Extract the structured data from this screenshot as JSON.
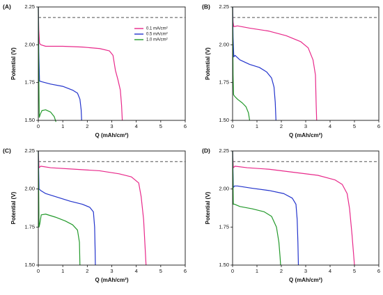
{
  "figure": {
    "colors": {
      "c01": "#e8288a",
      "c05": "#2233cc",
      "c10": "#22992a",
      "dash": "#666666"
    }
  },
  "chart_data": [
    {
      "panel": "(A)",
      "type": "line",
      "xlabel": "Q (mAh/cm²)",
      "ylabel": "Potential (V)",
      "xlim": [
        0,
        6
      ],
      "ylim": [
        1.5,
        2.25
      ],
      "xticks": [
        "0",
        "1",
        "2",
        "3",
        "4",
        "5",
        "6"
      ],
      "yticks": [
        "1.50",
        "1.75",
        "2.00",
        "2.25"
      ],
      "reference_line": {
        "y": 2.18,
        "style": "dashed"
      },
      "legend": {
        "position": "top-right",
        "entries": [
          "0.1 mA/cm²",
          "0.5 mA/cm²",
          "1.0 mA/cm²"
        ]
      },
      "series": [
        {
          "name": "0.1 mA/cm²",
          "color": "#e8288a",
          "points": [
            [
              0,
              2.25
            ],
            [
              0.02,
              2.1
            ],
            [
              0.05,
              2.01
            ],
            [
              0.1,
              2.0
            ],
            [
              0.3,
              1.99
            ],
            [
              1,
              1.99
            ],
            [
              1.8,
              1.985
            ],
            [
              2.5,
              1.975
            ],
            [
              2.9,
              1.96
            ],
            [
              3.05,
              1.93
            ],
            [
              3.1,
              1.88
            ],
            [
              3.15,
              1.83
            ],
            [
              3.25,
              1.77
            ],
            [
              3.35,
              1.7
            ],
            [
              3.4,
              1.6
            ],
            [
              3.43,
              1.5
            ]
          ]
        },
        {
          "name": "0.5 mA/cm²",
          "color": "#2233cc",
          "points": [
            [
              0,
              2.25
            ],
            [
              0.02,
              1.95
            ],
            [
              0.05,
              1.76
            ],
            [
              0.15,
              1.755
            ],
            [
              0.5,
              1.74
            ],
            [
              1,
              1.725
            ],
            [
              1.4,
              1.7
            ],
            [
              1.6,
              1.68
            ],
            [
              1.7,
              1.64
            ],
            [
              1.75,
              1.57
            ],
            [
              1.77,
              1.5
            ]
          ]
        },
        {
          "name": "1.0 mA/cm²",
          "color": "#22992a",
          "points": [
            [
              0,
              2.25
            ],
            [
              0.02,
              1.8
            ],
            [
              0.04,
              1.52
            ],
            [
              0.08,
              1.54
            ],
            [
              0.15,
              1.565
            ],
            [
              0.3,
              1.57
            ],
            [
              0.5,
              1.555
            ],
            [
              0.65,
              1.525
            ],
            [
              0.72,
              1.49
            ]
          ]
        }
      ]
    },
    {
      "panel": "(B)",
      "type": "line",
      "xlabel": "Q (mAh/cm²)",
      "ylabel": "Potential (V)",
      "xlim": [
        0,
        6
      ],
      "ylim": [
        1.5,
        2.25
      ],
      "xticks": [
        "0",
        "1",
        "2",
        "3",
        "4",
        "5",
        "6"
      ],
      "yticks": [
        "1.50",
        "1.75",
        "2.00",
        "2.25"
      ],
      "reference_line": {
        "y": 2.18,
        "style": "dashed"
      },
      "series": [
        {
          "name": "0.1 mA/cm²",
          "color": "#e8288a",
          "points": [
            [
              0,
              2.25
            ],
            [
              0.02,
              2.15
            ],
            [
              0.05,
              2.12
            ],
            [
              0.2,
              2.125
            ],
            [
              0.7,
              2.11
            ],
            [
              1.5,
              2.09
            ],
            [
              2.2,
              2.06
            ],
            [
              2.8,
              2.02
            ],
            [
              3.1,
              1.98
            ],
            [
              3.3,
              1.9
            ],
            [
              3.4,
              1.8
            ],
            [
              3.43,
              1.6
            ],
            [
              3.45,
              1.5
            ]
          ]
        },
        {
          "name": "0.5 mA/cm²",
          "color": "#2233cc",
          "points": [
            [
              0,
              2.25
            ],
            [
              0.02,
              2.05
            ],
            [
              0.05,
              1.92
            ],
            [
              0.1,
              1.93
            ],
            [
              0.3,
              1.9
            ],
            [
              0.7,
              1.87
            ],
            [
              1.1,
              1.85
            ],
            [
              1.4,
              1.82
            ],
            [
              1.6,
              1.78
            ],
            [
              1.7,
              1.72
            ],
            [
              1.75,
              1.62
            ],
            [
              1.78,
              1.5
            ]
          ]
        },
        {
          "name": "1.0 mA/cm²",
          "color": "#22992a",
          "points": [
            [
              0,
              2.25
            ],
            [
              0.02,
              1.8
            ],
            [
              0.04,
              1.67
            ],
            [
              0.08,
              1.66
            ],
            [
              0.2,
              1.64
            ],
            [
              0.4,
              1.615
            ],
            [
              0.55,
              1.59
            ],
            [
              0.65,
              1.55
            ],
            [
              0.7,
              1.5
            ]
          ]
        }
      ]
    },
    {
      "panel": "(C)",
      "type": "line",
      "xlabel": "Q (mAh/cm²)",
      "ylabel": "Potential (V)",
      "xlim": [
        0,
        6
      ],
      "ylim": [
        1.5,
        2.25
      ],
      "xticks": [
        "0",
        "1",
        "2",
        "3",
        "4",
        "5",
        "6"
      ],
      "yticks": [
        "1.50",
        "1.75",
        "2.00",
        "2.25"
      ],
      "reference_line": {
        "y": 2.18,
        "style": "dashed"
      },
      "series": [
        {
          "name": "0.1 mA/cm²",
          "color": "#e8288a",
          "points": [
            [
              0,
              2.25
            ],
            [
              0.03,
              2.14
            ],
            [
              0.1,
              2.15
            ],
            [
              0.5,
              2.14
            ],
            [
              1.5,
              2.13
            ],
            [
              2.5,
              2.12
            ],
            [
              3.3,
              2.1
            ],
            [
              3.8,
              2.08
            ],
            [
              4.1,
              2.04
            ],
            [
              4.2,
              1.95
            ],
            [
              4.3,
              1.8
            ],
            [
              4.35,
              1.65
            ],
            [
              4.4,
              1.5
            ]
          ]
        },
        {
          "name": "0.5 mA/cm²",
          "color": "#2233cc",
          "points": [
            [
              0,
              2.25
            ],
            [
              0.03,
              2.0
            ],
            [
              0.1,
              1.99
            ],
            [
              0.3,
              1.97
            ],
            [
              0.8,
              1.945
            ],
            [
              1.3,
              1.92
            ],
            [
              1.8,
              1.9
            ],
            [
              2.1,
              1.88
            ],
            [
              2.25,
              1.85
            ],
            [
              2.3,
              1.75
            ],
            [
              2.32,
              1.6
            ],
            [
              2.33,
              1.5
            ]
          ]
        },
        {
          "name": "1.0 mA/cm²",
          "color": "#22992a",
          "points": [
            [
              0,
              2.25
            ],
            [
              0.03,
              1.75
            ],
            [
              0.06,
              1.77
            ],
            [
              0.12,
              1.83
            ],
            [
              0.3,
              1.835
            ],
            [
              0.7,
              1.815
            ],
            [
              1.1,
              1.79
            ],
            [
              1.4,
              1.765
            ],
            [
              1.6,
              1.73
            ],
            [
              1.68,
              1.65
            ],
            [
              1.7,
              1.5
            ]
          ]
        }
      ]
    },
    {
      "panel": "(D)",
      "type": "line",
      "xlabel": "Q (mAh/cm²)",
      "ylabel": "Potential (V)",
      "xlim": [
        0,
        6
      ],
      "ylim": [
        1.5,
        2.25
      ],
      "xticks": [
        "0",
        "1",
        "2",
        "3",
        "4",
        "5",
        "6"
      ],
      "yticks": [
        "1.50",
        "1.75",
        "2.00",
        "2.25"
      ],
      "reference_line": {
        "y": 2.18,
        "style": "dashed"
      },
      "series": [
        {
          "name": "0.1 mA/cm²",
          "color": "#e8288a",
          "points": [
            [
              0,
              2.25
            ],
            [
              0.03,
              2.14
            ],
            [
              0.1,
              2.15
            ],
            [
              0.6,
              2.14
            ],
            [
              1.5,
              2.13
            ],
            [
              2.5,
              2.11
            ],
            [
              3.5,
              2.09
            ],
            [
              4.2,
              2.06
            ],
            [
              4.5,
              2.03
            ],
            [
              4.7,
              1.97
            ],
            [
              4.8,
              1.87
            ],
            [
              4.9,
              1.7
            ],
            [
              4.95,
              1.6
            ],
            [
              5.0,
              1.5
            ]
          ]
        },
        {
          "name": "0.5 mA/cm²",
          "color": "#2233cc",
          "points": [
            [
              0,
              2.25
            ],
            [
              0.03,
              2.01
            ],
            [
              0.08,
              2.02
            ],
            [
              0.2,
              2.02
            ],
            [
              0.8,
              2.005
            ],
            [
              1.5,
              1.99
            ],
            [
              2.1,
              1.97
            ],
            [
              2.45,
              1.94
            ],
            [
              2.6,
              1.9
            ],
            [
              2.65,
              1.8
            ],
            [
              2.68,
              1.65
            ],
            [
              2.7,
              1.5
            ]
          ]
        },
        {
          "name": "1.0 mA/cm²",
          "color": "#22992a",
          "points": [
            [
              0,
              2.25
            ],
            [
              0.03,
              1.9
            ],
            [
              0.08,
              1.9
            ],
            [
              0.3,
              1.885
            ],
            [
              0.8,
              1.87
            ],
            [
              1.3,
              1.85
            ],
            [
              1.6,
              1.82
            ],
            [
              1.8,
              1.75
            ],
            [
              1.9,
              1.65
            ],
            [
              1.95,
              1.55
            ],
            [
              1.97,
              1.5
            ]
          ]
        }
      ]
    }
  ]
}
